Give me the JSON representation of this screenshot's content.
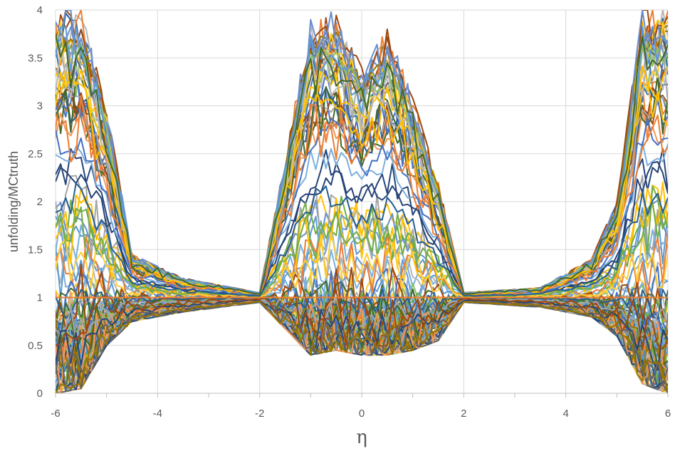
{
  "chart_data": {
    "type": "line",
    "xlabel": "η",
    "ylabel": "unfolding/MCtruth",
    "xlim": [
      -6,
      6
    ],
    "ylim": [
      0,
      4
    ],
    "x_ticks": [
      "-6",
      "-4",
      "-2",
      "0",
      "2",
      "4",
      "6"
    ],
    "y_ticks": [
      "0",
      "0.5",
      "1",
      "1.5",
      "2",
      "2.5",
      "3",
      "3.5",
      "4"
    ],
    "grid": true,
    "legend": "none",
    "series_count": 120,
    "reference_line": 1,
    "colors": [
      "#4472c4",
      "#ed7d31",
      "#a5a5a5",
      "#ffc000",
      "#5b9bd5",
      "#70ad47",
      "#264478",
      "#9e480e",
      "#636363",
      "#997300",
      "#255e91",
      "#43682b",
      "#698ed0",
      "#f1975a",
      "#b7b7b7",
      "#ffcd33",
      "#7cafdd",
      "#8cc168"
    ],
    "envelope": [
      {
        "x": -6.0,
        "y_min": 0.0,
        "y_max": 4.0
      },
      {
        "x": -5.5,
        "y_min": 0.05,
        "y_max": 4.0
      },
      {
        "x": -5.0,
        "y_min": 0.5,
        "y_max": 3.0
      },
      {
        "x": -4.5,
        "y_min": 0.75,
        "y_max": 1.45
      },
      {
        "x": -3.5,
        "y_min": 0.85,
        "y_max": 1.2
      },
      {
        "x": -2.0,
        "y_min": 0.95,
        "y_max": 1.05
      },
      {
        "x": -1.0,
        "y_min": 0.4,
        "y_max": 3.9
      },
      {
        "x": -0.5,
        "y_min": 0.45,
        "y_max": 4.0
      },
      {
        "x": 0.0,
        "y_min": 0.4,
        "y_max": 3.4
      },
      {
        "x": 0.5,
        "y_min": 0.4,
        "y_max": 3.8
      },
      {
        "x": 1.0,
        "y_min": 0.45,
        "y_max": 3.1
      },
      {
        "x": 1.5,
        "y_min": 0.55,
        "y_max": 2.2
      },
      {
        "x": 2.0,
        "y_min": 0.95,
        "y_max": 1.05
      },
      {
        "x": 3.5,
        "y_min": 0.9,
        "y_max": 1.1
      },
      {
        "x": 4.5,
        "y_min": 0.8,
        "y_max": 1.4
      },
      {
        "x": 5.0,
        "y_min": 0.6,
        "y_max": 2.0
      },
      {
        "x": 5.5,
        "y_min": 0.1,
        "y_max": 4.0
      },
      {
        "x": 6.0,
        "y_min": 0.0,
        "y_max": 4.0
      }
    ]
  }
}
